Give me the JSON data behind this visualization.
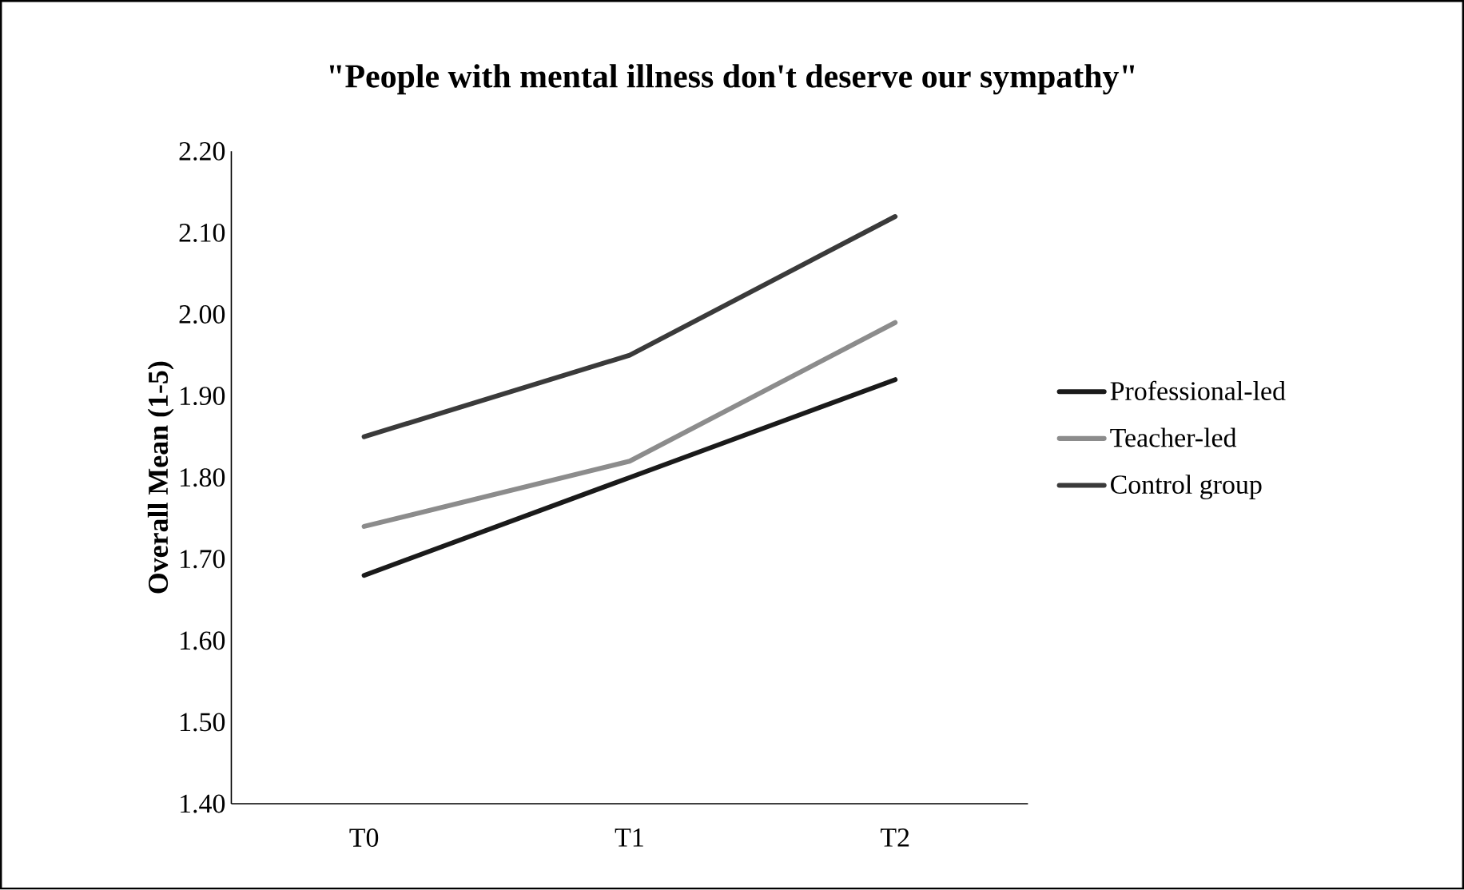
{
  "chart_data": {
    "type": "line",
    "title": "\"People with mental illness don't deserve our sympathy\"",
    "ylabel": "Overall Mean (1-5)",
    "categories": [
      "T0",
      "T1",
      "T2"
    ],
    "series": [
      {
        "name": "Professional-led",
        "color": "#1a1a1a",
        "values": [
          1.68,
          1.8,
          1.92
        ]
      },
      {
        "name": "Teacher-led",
        "color": "#8c8c8c",
        "values": [
          1.74,
          1.82,
          1.99
        ]
      },
      {
        "name": "Control group",
        "color": "#3a3a3a",
        "values": [
          1.85,
          1.95,
          2.12
        ]
      }
    ],
    "ylim": [
      1.4,
      2.2
    ],
    "yticks": [
      {
        "value": 1.4,
        "label": "1.40"
      },
      {
        "value": 1.5,
        "label": "1.50"
      },
      {
        "value": 1.6,
        "label": "1.60"
      },
      {
        "value": 1.7,
        "label": "1.70"
      },
      {
        "value": 1.8,
        "label": "1.80"
      },
      {
        "value": 1.9,
        "label": "1.90"
      },
      {
        "value": 2.0,
        "label": "2.00"
      },
      {
        "value": 2.1,
        "label": "2.10"
      },
      {
        "value": 2.2,
        "label": "2.20"
      }
    ],
    "grid": false,
    "legend": "right",
    "marker": "none",
    "line_style": "solid"
  }
}
